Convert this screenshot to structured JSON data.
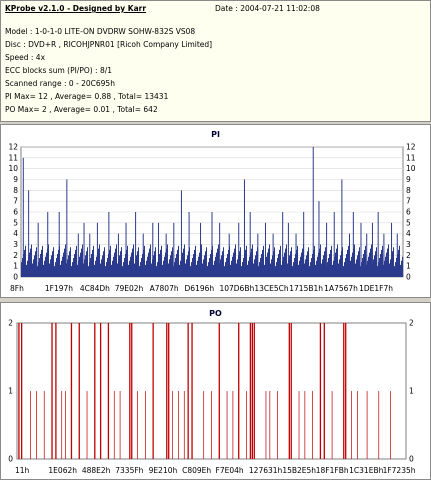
{
  "info": {
    "title": "KProbe v2.1.0 - Designed by Karr",
    "date": "Date : 2004-07-21 11:02:08",
    "lines": [
      "Model : 1-0-1-0 LITE-ON DVDRW SOHW-832S  VS08",
      "Disc : DVD+R , RICOHJPNR01 [Ricoh Company Limited]",
      "Speed : 4x",
      "ECC blocks sum (PI/PO) : 8/1",
      "Scanned range : 0 - 20C695h",
      "PI Max= 12 , Average= 0.88 , Total= 13431",
      "PO Max= 2 , Average= 0.01 , Total= 642"
    ]
  },
  "chart_data": [
    {
      "type": "bar",
      "title": "PI",
      "ylim": [
        0,
        12
      ],
      "yticks": [
        0,
        1,
        2,
        3,
        4,
        5,
        6,
        7,
        8,
        9,
        10,
        11,
        12
      ],
      "xticklabels": [
        "8Fh",
        "1F197h",
        "4C84Dh",
        "79E02h",
        "A7807h",
        "D6196h",
        "107D6Bh",
        "13CE5Ch",
        "1715B1h",
        "1A7567h",
        "1DE1F7h"
      ],
      "baseline_range": [
        1,
        3
      ],
      "spikes": [
        [
          0.006,
          11
        ],
        [
          0.02,
          8
        ],
        [
          0.045,
          5
        ],
        [
          0.07,
          6
        ],
        [
          0.1,
          6
        ],
        [
          0.12,
          9
        ],
        [
          0.15,
          4
        ],
        [
          0.165,
          5
        ],
        [
          0.18,
          4
        ],
        [
          0.2,
          5
        ],
        [
          0.23,
          6
        ],
        [
          0.255,
          4
        ],
        [
          0.275,
          5
        ],
        [
          0.3,
          6
        ],
        [
          0.32,
          4
        ],
        [
          0.345,
          5
        ],
        [
          0.36,
          5
        ],
        [
          0.38,
          4
        ],
        [
          0.4,
          5
        ],
        [
          0.42,
          8
        ],
        [
          0.44,
          6
        ],
        [
          0.47,
          5
        ],
        [
          0.5,
          6
        ],
        [
          0.52,
          5
        ],
        [
          0.545,
          4
        ],
        [
          0.57,
          5
        ],
        [
          0.585,
          9
        ],
        [
          0.6,
          6
        ],
        [
          0.62,
          4
        ],
        [
          0.64,
          5
        ],
        [
          0.66,
          4
        ],
        [
          0.685,
          6
        ],
        [
          0.7,
          5
        ],
        [
          0.72,
          4
        ],
        [
          0.74,
          6
        ],
        [
          0.765,
          12
        ],
        [
          0.78,
          7
        ],
        [
          0.8,
          5
        ],
        [
          0.82,
          6
        ],
        [
          0.84,
          9
        ],
        [
          0.86,
          4
        ],
        [
          0.87,
          6
        ],
        [
          0.89,
          5
        ],
        [
          0.905,
          4
        ],
        [
          0.92,
          5
        ],
        [
          0.935,
          6
        ],
        [
          0.95,
          4
        ],
        [
          0.97,
          5
        ],
        [
          0.985,
          4
        ]
      ],
      "bar_color": "#2b3a8c",
      "grid": true
    },
    {
      "type": "bar",
      "title": "PO",
      "ylim": [
        0,
        2
      ],
      "yticks": [
        0,
        1,
        2
      ],
      "xticklabels": [
        "11h",
        "1E062h",
        "488E2h",
        "7335Fh",
        "9E210h",
        "C809Eh",
        "F7E04h",
        "127631h",
        "15B2E5h",
        "18F1FBh",
        "1C31EBh",
        "1F7235h"
      ],
      "lines_at_2": [
        0.005,
        0.012,
        0.09,
        0.1,
        0.14,
        0.16,
        0.2,
        0.215,
        0.235,
        0.29,
        0.295,
        0.35,
        0.385,
        0.39,
        0.44,
        0.45,
        0.52,
        0.57,
        0.6,
        0.605,
        0.61,
        0.7,
        0.705,
        0.78,
        0.79,
        0.84,
        0.845
      ],
      "lines_at_1": [
        0.035,
        0.05,
        0.07,
        0.115,
        0.125,
        0.18,
        0.25,
        0.265,
        0.31,
        0.33,
        0.4,
        0.415,
        0.43,
        0.48,
        0.5,
        0.54,
        0.555,
        0.59,
        0.64,
        0.65,
        0.67,
        0.725,
        0.74,
        0.76,
        0.81,
        0.86,
        0.875,
        0.9,
        0.93,
        0.96
      ],
      "bar_color": "#c00000",
      "grid": false
    }
  ]
}
